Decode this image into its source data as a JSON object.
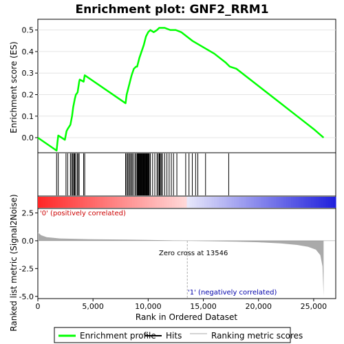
{
  "chart_data": {
    "type": "line",
    "title": "Enrichment plot: GNF2_RRM1",
    "xlabel": "Rank in Ordered Dataset",
    "ylabel_top": "Enrichment score (ES)",
    "ylabel_bottom": "Ranked list metric (Signal2Noise)",
    "xlim": [
      0,
      27000
    ],
    "x_ticks": [
      0,
      5000,
      10000,
      15000,
      20000,
      25000
    ],
    "x_tick_labels": [
      "0",
      "5,000",
      "10,000",
      "15,000",
      "20,000",
      "25,000"
    ],
    "es_ylim": [
      -0.07,
      0.55
    ],
    "es_ticks": [
      0.0,
      0.1,
      0.2,
      0.3,
      0.4,
      0.5
    ],
    "es_tick_labels": [
      "0.0",
      "0.1",
      "0.2",
      "0.3",
      "0.4",
      "0.5"
    ],
    "metric_ylim": [
      -5.2,
      2.9
    ],
    "metric_ticks": [
      2.5,
      0.0,
      -2.5,
      -5.0
    ],
    "metric_tick_labels": [
      "2.5",
      "0.0",
      "-2.5",
      "-5.0"
    ],
    "series": [
      {
        "name": "Enrichment profile",
        "color": "#00ff00",
        "x": [
          0,
          1700,
          1780,
          1850,
          2450,
          2600,
          2700,
          2950,
          3100,
          3200,
          3350,
          3450,
          3600,
          3750,
          3800,
          4150,
          4250,
          7950,
          8050,
          8200,
          8350,
          8500,
          8700,
          8900,
          9000,
          9200,
          9400,
          9600,
          9800,
          10000,
          10200,
          10500,
          10800,
          11000,
          11200,
          11500,
          12000,
          12500,
          13000,
          13500,
          14000,
          15000,
          16000,
          17000,
          17400,
          18000,
          19000,
          20000,
          21000,
          22000,
          23000,
          24000,
          25000,
          25900
        ],
        "y": [
          0.0,
          -0.06,
          -0.02,
          0.01,
          -0.01,
          0.03,
          0.04,
          0.06,
          0.1,
          0.14,
          0.18,
          0.2,
          0.21,
          0.26,
          0.27,
          0.26,
          0.29,
          0.16,
          0.2,
          0.23,
          0.26,
          0.29,
          0.32,
          0.33,
          0.33,
          0.37,
          0.4,
          0.43,
          0.47,
          0.49,
          0.5,
          0.49,
          0.5,
          0.51,
          0.51,
          0.51,
          0.5,
          0.5,
          0.49,
          0.47,
          0.45,
          0.42,
          0.39,
          0.35,
          0.33,
          0.32,
          0.28,
          0.24,
          0.2,
          0.16,
          0.12,
          0.08,
          0.04,
          0.0
        ]
      }
    ],
    "hits": [
      1700,
      1850,
      2550,
      2700,
      2950,
      3050,
      3150,
      3250,
      3300,
      3350,
      3450,
      3600,
      3650,
      3750,
      4150,
      4250,
      7950,
      8050,
      8150,
      8250,
      8350,
      8450,
      8550,
      8650,
      8800,
      8900,
      9000,
      9050,
      9100,
      9150,
      9200,
      9250,
      9300,
      9350,
      9400,
      9450,
      9500,
      9550,
      9600,
      9650,
      9700,
      9750,
      9800,
      9850,
      9900,
      9950,
      10000,
      10050,
      10100,
      10200,
      10400,
      10600,
      10800,
      10900,
      11000,
      11050,
      11100,
      11200,
      11300,
      11500,
      11700,
      11900,
      12100,
      12300,
      12600,
      13400,
      13700,
      14000,
      14300,
      14500,
      15200,
      17300
    ],
    "metric_profile": {
      "x": [
        0,
        300,
        800,
        2000,
        5000,
        8000,
        10000,
        12000,
        13546,
        15000,
        18000,
        20000,
        22000,
        23500,
        24500,
        25200,
        25600,
        25800,
        25900
      ],
      "y": [
        0.75,
        0.5,
        0.32,
        0.2,
        0.13,
        0.1,
        0.07,
        0.03,
        0.0,
        -0.03,
        -0.08,
        -0.14,
        -0.24,
        -0.38,
        -0.55,
        -0.8,
        -1.3,
        -2.3,
        -5.0
      ]
    },
    "zero_cross_label": "Zero cross at 13546",
    "zero_cross": 13546,
    "pos_label": "'0' (positively correlated)",
    "neg_label": "'1' (negatively correlated)",
    "legend": [
      "Enrichment profile",
      "Hits",
      "Ranking metric scores"
    ],
    "colors": {
      "es_line": "#00ff00",
      "hits": "#000000",
      "metric_fill": "#aaaaaa",
      "pos_text": "#cc0000",
      "neg_text": "#0000aa",
      "zero_line": "#aaaaaa"
    }
  }
}
